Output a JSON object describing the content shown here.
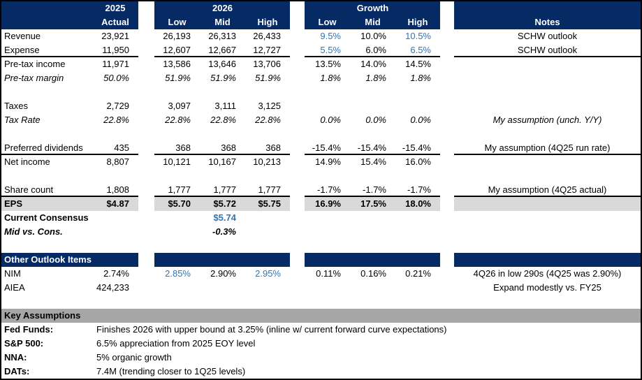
{
  "colors": {
    "navy": "#062a64",
    "blue": "#2E75B6",
    "band": "#D9D9D9",
    "bar": "#A6A6A6",
    "rule": "#000000"
  },
  "header": {
    "left_year": "2025",
    "left_col": "Actual",
    "mid_year": "2026",
    "mid_cols": [
      "Low",
      "Mid",
      "High"
    ],
    "growth_title": "Growth",
    "growth_cols": [
      "Low",
      "Mid",
      "High"
    ],
    "notes_title": "Notes"
  },
  "rows": [
    {
      "id": "revenue",
      "label": "Revenue",
      "cells": [
        "23,921",
        "26,193",
        "26,313",
        "26,433",
        {
          "v": "9.5%",
          "blue": true
        },
        "10.0%",
        {
          "v": "10.5%",
          "blue": true
        }
      ],
      "note": "SCHW outlook"
    },
    {
      "id": "expense",
      "label": "Expense",
      "cells": [
        "11,950",
        "12,607",
        "12,667",
        "12,727",
        {
          "v": "5.5%",
          "blue": true
        },
        "6.0%",
        {
          "v": "6.5%",
          "blue": true
        }
      ],
      "note": "SCHW outlook",
      "f": [
        "rule"
      ]
    },
    {
      "id": "pretax-income",
      "label": "Pre-tax income",
      "cells": [
        "11,971",
        "13,586",
        "13,646",
        "13,706",
        "13.5%",
        "14.0%",
        "14.5%"
      ],
      "note": ""
    },
    {
      "id": "pretax-margin",
      "label": "Pre-tax margin",
      "cells": [
        "50.0%",
        "51.9%",
        "51.9%",
        "51.9%",
        "1.8%",
        "1.8%",
        "1.8%"
      ],
      "note": "",
      "f": [
        "italic"
      ]
    },
    {
      "id": "blank-1",
      "type": "blank"
    },
    {
      "id": "taxes",
      "label": "Taxes",
      "cells": [
        "2,729",
        "3,097",
        "3,111",
        "3,125",
        "",
        "",
        ""
      ],
      "note": ""
    },
    {
      "id": "tax-rate",
      "label": "Tax Rate",
      "cells": [
        "22.8%",
        "22.8%",
        "22.8%",
        "22.8%",
        "0.0%",
        "0.0%",
        "0.0%"
      ],
      "note": "My assumption (unch. Y/Y)",
      "f": [
        "italic"
      ]
    },
    {
      "id": "blank-2",
      "type": "blank"
    },
    {
      "id": "preferred-dividends",
      "label": "Preferred dividends",
      "cells": [
        "435",
        "368",
        "368",
        "368",
        "-15.4%",
        "-15.4%",
        "-15.4%"
      ],
      "note": "My assumption (4Q25 run rate)",
      "f": [
        "rule"
      ]
    },
    {
      "id": "net-income",
      "label": "Net income",
      "cells": [
        "8,807",
        "10,121",
        "10,167",
        "10,213",
        "14.9%",
        "15.4%",
        "16.0%"
      ],
      "note": ""
    },
    {
      "id": "blank-3",
      "type": "blank"
    },
    {
      "id": "share-count",
      "label": "Share count",
      "cells": [
        "1,808",
        "1,777",
        "1,777",
        "1,777",
        "-1.7%",
        "-1.7%",
        "-1.7%"
      ],
      "note": "My assumption (4Q25 actual)",
      "f": [
        "rule"
      ]
    },
    {
      "id": "eps",
      "label": "EPS",
      "cells": [
        "$4.87",
        "$5.70",
        "$5.72",
        "$5.75",
        "16.9%",
        "17.5%",
        "18.0%"
      ],
      "note": "",
      "f": [
        "bold",
        "gray"
      ]
    },
    {
      "id": "current-consensus",
      "label": "Current Consensus",
      "cells": [
        "",
        "",
        {
          "v": "$5.74",
          "blue": true
        },
        "",
        "",
        "",
        ""
      ],
      "note": "",
      "f": [
        "bold"
      ]
    },
    {
      "id": "mid-vs-cons",
      "label": "Mid vs. Cons.",
      "cells": [
        "",
        "",
        "-0.3%",
        "",
        "",
        "",
        ""
      ],
      "note": "",
      "f": [
        "bolditalic"
      ]
    },
    {
      "id": "blank-4",
      "type": "blank"
    },
    {
      "id": "other-outlook-items",
      "label": "Other Outlook Items:",
      "cells": [
        "",
        "",
        "",
        "",
        "",
        "",
        ""
      ],
      "note": "",
      "f": [
        "navy"
      ]
    },
    {
      "id": "nim",
      "label": "NIM",
      "cells": [
        "2.74%",
        {
          "v": "2.85%",
          "blue": true
        },
        "2.90%",
        {
          "v": "2.95%",
          "blue": true
        },
        "0.11%",
        "0.16%",
        "0.21%"
      ],
      "note": "4Q26 in low 290s (4Q25 was 2.90%)"
    },
    {
      "id": "aiea",
      "label": "AIEA",
      "cells": [
        "424,233",
        "",
        "",
        "",
        "",
        "",
        ""
      ],
      "note": "Expand modestly vs. FY25"
    },
    {
      "id": "blank-5",
      "type": "blank"
    },
    {
      "id": "key-assumptions",
      "type": "graybar",
      "label": "Key Assumptions"
    },
    {
      "id": "fed-funds",
      "type": "kv",
      "label": "Fed Funds:",
      "text": "Finishes 2026 with upper bound at 3.25% (inline w/ current forward curve expectations)"
    },
    {
      "id": "sp500",
      "type": "kv",
      "label": "S&P 500:",
      "text": "6.5% appreciation from 2025 EOY level"
    },
    {
      "id": "nna",
      "type": "kv",
      "label": "NNA:",
      "text": "5% organic growth"
    },
    {
      "id": "dats",
      "type": "kv",
      "label": "DATs:",
      "text": "7.4M (trending closer to 1Q25 levels)"
    }
  ]
}
